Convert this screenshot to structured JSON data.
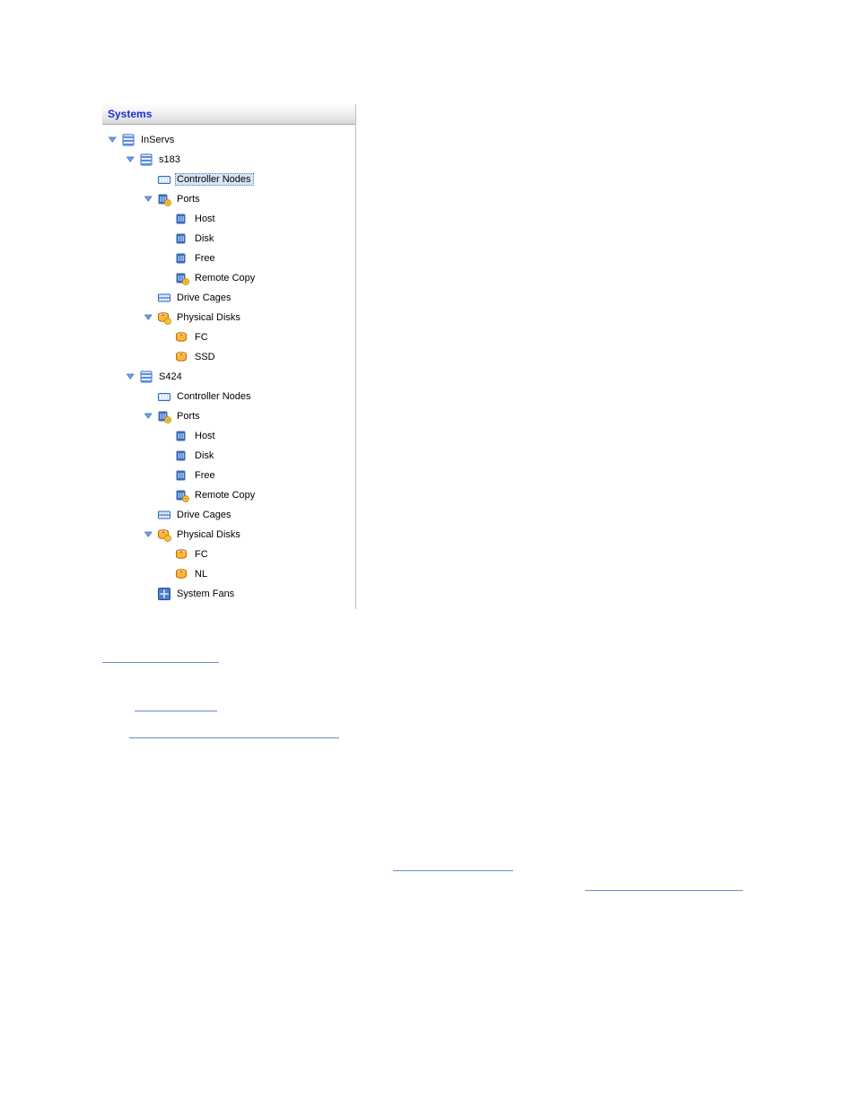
{
  "panel": {
    "title": "Systems"
  },
  "icons": {
    "toggle_open_fill": "#6fa6e8",
    "toggle_open_stroke": "#3a6bb8",
    "server_body": "#e8f0ff",
    "server_stroke": "#3a6bb8",
    "server_stripe": "#5a8de0",
    "controller_body": "#bcd7ff",
    "controller_stroke": "#3a6bb8",
    "controller_slot": "#ffffff",
    "port_body": "#3a6bb8",
    "port_pin": "#a8c4f0",
    "port_badge_fill": "#ffd24a",
    "port_badge_stroke": "#c08a00",
    "cage_body": "#bcd7ff",
    "cage_stroke": "#3a6bb8",
    "cage_dot": "#ffffff",
    "disk_body": "#ffb63a",
    "disk_stroke": "#b86a00",
    "disk_top": "#ffe0a0",
    "fan_body": "#4a7ed0",
    "fan_stroke": "#2a4e90",
    "fan_blade": "#cfe0ff"
  },
  "tree": [
    {
      "depth": 0,
      "toggle": "open",
      "icon": "server",
      "label": "InServs"
    },
    {
      "depth": 1,
      "toggle": "open",
      "icon": "server",
      "label": "s183"
    },
    {
      "depth": 2,
      "toggle": "none",
      "icon": "controller",
      "label": "Controller Nodes",
      "selected": true
    },
    {
      "depth": 2,
      "toggle": "open",
      "icon": "port-badge",
      "label": "Ports"
    },
    {
      "depth": 3,
      "toggle": "none",
      "icon": "port",
      "label": "Host"
    },
    {
      "depth": 3,
      "toggle": "none",
      "icon": "port",
      "label": "Disk"
    },
    {
      "depth": 3,
      "toggle": "none",
      "icon": "port",
      "label": "Free"
    },
    {
      "depth": 3,
      "toggle": "none",
      "icon": "port-badge",
      "label": "Remote Copy"
    },
    {
      "depth": 2,
      "toggle": "none",
      "icon": "cage",
      "label": "Drive Cages"
    },
    {
      "depth": 2,
      "toggle": "open",
      "icon": "disk-badge",
      "label": "Physical Disks"
    },
    {
      "depth": 3,
      "toggle": "none",
      "icon": "disk",
      "label": "FC"
    },
    {
      "depth": 3,
      "toggle": "none",
      "icon": "disk",
      "label": "SSD"
    },
    {
      "depth": 1,
      "toggle": "open",
      "icon": "server",
      "label": "S424"
    },
    {
      "depth": 2,
      "toggle": "none",
      "icon": "controller",
      "label": "Controller Nodes"
    },
    {
      "depth": 2,
      "toggle": "open",
      "icon": "port-badge",
      "label": "Ports"
    },
    {
      "depth": 3,
      "toggle": "none",
      "icon": "port",
      "label": "Host"
    },
    {
      "depth": 3,
      "toggle": "none",
      "icon": "port",
      "label": "Disk"
    },
    {
      "depth": 3,
      "toggle": "none",
      "icon": "port",
      "label": "Free"
    },
    {
      "depth": 3,
      "toggle": "none",
      "icon": "port-badge",
      "label": "Remote Copy"
    },
    {
      "depth": 2,
      "toggle": "none",
      "icon": "cage",
      "label": "Drive Cages"
    },
    {
      "depth": 2,
      "toggle": "open",
      "icon": "disk-badge",
      "label": "Physical Disks"
    },
    {
      "depth": 3,
      "toggle": "none",
      "icon": "disk",
      "label": "FC"
    },
    {
      "depth": 3,
      "toggle": "none",
      "icon": "disk",
      "label": "NL"
    },
    {
      "depth": 2,
      "toggle": "none",
      "icon": "fan",
      "label": "System Fans"
    }
  ],
  "doc": {
    "line1_prefix": "",
    "link1": "",
    "line2": "",
    "par2_a": "",
    "link2": "",
    "par2_b": "",
    "link3": ""
  }
}
